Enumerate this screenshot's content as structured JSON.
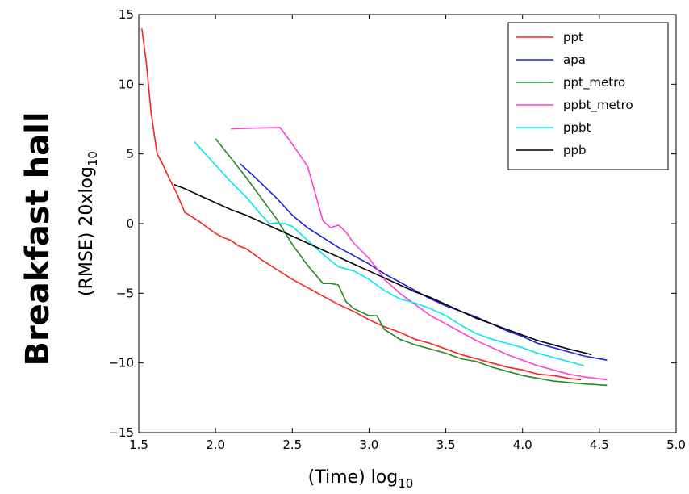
{
  "chart_data": {
    "type": "line",
    "title": "Breakfast hall",
    "xlabel": "(Time) log",
    "xlabel_sub": "10",
    "ylabel": "(RMSE) 20xlog",
    "ylabel_sub": "10",
    "xlim": [
      1.5,
      5.0
    ],
    "ylim": [
      -15,
      15
    ],
    "xticks": [
      1.5,
      2.0,
      2.5,
      3.0,
      3.5,
      4.0,
      4.5,
      5.0
    ],
    "xtick_labels": [
      "1.5",
      "2.0",
      "2.5",
      "3.0",
      "3.5",
      "4.0",
      "4.5",
      "5.0"
    ],
    "yticks": [
      -15,
      -10,
      -5,
      0,
      5,
      10,
      15
    ],
    "ytick_labels": [
      "−15",
      "−10",
      "−5",
      "0",
      "5",
      "10",
      "15"
    ],
    "grid": false,
    "legend_position": "top-right",
    "series": [
      {
        "name": "ppt",
        "color": "#ff2020",
        "x": [
          1.52,
          1.55,
          1.58,
          1.62,
          1.65,
          1.7,
          1.75,
          1.8,
          1.83,
          1.9,
          2.0,
          2.05,
          2.1,
          2.15,
          2.2,
          2.25,
          2.3,
          2.4,
          2.5,
          2.6,
          2.7,
          2.8,
          2.9,
          3.0,
          3.1,
          3.2,
          3.3,
          3.4,
          3.5,
          3.6,
          3.7,
          3.8,
          3.9,
          4.0,
          4.1,
          4.2,
          4.3,
          4.38
        ],
        "y": [
          14.0,
          11.5,
          8.0,
          5.0,
          4.4,
          3.2,
          2.1,
          0.8,
          0.6,
          0.1,
          -0.7,
          -1.0,
          -1.2,
          -1.6,
          -1.8,
          -2.2,
          -2.6,
          -3.3,
          -4.0,
          -4.6,
          -5.2,
          -5.8,
          -6.3,
          -6.9,
          -7.4,
          -7.8,
          -8.3,
          -8.6,
          -9.0,
          -9.4,
          -9.7,
          -10.0,
          -10.3,
          -10.5,
          -10.8,
          -10.9,
          -11.1,
          -11.2
        ]
      },
      {
        "name": "apa",
        "color": "#2020e0",
        "x": [
          2.16,
          2.25,
          2.4,
          2.5,
          2.6,
          2.7,
          2.8,
          2.9,
          3.0,
          3.1,
          3.2,
          3.3,
          3.4,
          3.5,
          3.6,
          3.7,
          3.8,
          3.9,
          4.0,
          4.1,
          4.2,
          4.3,
          4.4,
          4.55
        ],
        "y": [
          4.3,
          3.4,
          1.8,
          0.6,
          -0.3,
          -1.0,
          -1.7,
          -2.3,
          -2.9,
          -3.6,
          -4.2,
          -4.8,
          -5.4,
          -5.9,
          -6.3,
          -6.7,
          -7.2,
          -7.7,
          -8.1,
          -8.6,
          -8.9,
          -9.2,
          -9.5,
          -9.8
        ]
      },
      {
        "name": "ppt_metro",
        "color": "#228b22",
        "x": [
          2.0,
          2.1,
          2.2,
          2.3,
          2.4,
          2.5,
          2.6,
          2.7,
          2.75,
          2.8,
          2.85,
          2.9,
          3.0,
          3.05,
          3.1,
          3.2,
          3.3,
          3.4,
          3.5,
          3.6,
          3.7,
          3.8,
          3.9,
          4.0,
          4.1,
          4.2,
          4.3,
          4.4,
          4.55
        ],
        "y": [
          6.1,
          4.7,
          3.3,
          1.8,
          0.3,
          -1.5,
          -3.0,
          -4.3,
          -4.3,
          -4.4,
          -5.6,
          -6.1,
          -6.6,
          -6.6,
          -7.6,
          -8.3,
          -8.7,
          -9.0,
          -9.3,
          -9.7,
          -9.9,
          -10.3,
          -10.6,
          -10.9,
          -11.1,
          -11.3,
          -11.4,
          -11.5,
          -11.6
        ]
      },
      {
        "name": "ppbt_metro",
        "color": "#ff40d0",
        "x": [
          2.1,
          2.25,
          2.42,
          2.5,
          2.6,
          2.7,
          2.75,
          2.8,
          2.85,
          2.9,
          3.0,
          3.05,
          3.1,
          3.2,
          3.3,
          3.4,
          3.5,
          3.6,
          3.7,
          3.8,
          3.9,
          4.0,
          4.1,
          4.2,
          4.3,
          4.4,
          4.55
        ],
        "y": [
          6.8,
          6.85,
          6.9,
          5.7,
          4.1,
          0.2,
          -0.3,
          -0.1,
          -0.6,
          -1.4,
          -2.5,
          -3.2,
          -4.0,
          -5.0,
          -5.8,
          -6.6,
          -7.2,
          -7.8,
          -8.4,
          -8.9,
          -9.4,
          -9.8,
          -10.2,
          -10.5,
          -10.8,
          -11.0,
          -11.2
        ]
      },
      {
        "name": "ppbt",
        "color": "#00e8f0",
        "x": [
          1.86,
          2.0,
          2.1,
          2.2,
          2.3,
          2.35,
          2.4,
          2.45,
          2.5,
          2.6,
          2.7,
          2.8,
          2.9,
          3.0,
          3.1,
          3.2,
          3.3,
          3.4,
          3.5,
          3.6,
          3.7,
          3.8,
          3.9,
          4.0,
          4.1,
          4.2,
          4.3,
          4.4
        ],
        "y": [
          5.9,
          4.2,
          3.0,
          1.9,
          0.6,
          0.0,
          0.05,
          0.0,
          -0.2,
          -1.2,
          -2.2,
          -3.1,
          -3.4,
          -4.0,
          -4.8,
          -5.4,
          -5.7,
          -6.1,
          -6.6,
          -7.3,
          -7.9,
          -8.3,
          -8.6,
          -8.9,
          -9.3,
          -9.6,
          -9.9,
          -10.2
        ]
      },
      {
        "name": "ppb",
        "color": "#000000",
        "x": [
          1.73,
          1.8,
          1.9,
          2.0,
          2.1,
          2.2,
          2.3,
          2.4,
          2.5,
          2.6,
          2.7,
          2.8,
          2.9,
          3.0,
          3.1,
          3.2,
          3.3,
          3.4,
          3.5,
          3.6,
          3.7,
          3.8,
          3.9,
          4.0,
          4.1,
          4.2,
          4.3,
          4.45
        ],
        "y": [
          2.8,
          2.5,
          2.0,
          1.5,
          1.0,
          0.6,
          0.1,
          -0.4,
          -0.9,
          -1.4,
          -1.9,
          -2.4,
          -2.9,
          -3.4,
          -3.9,
          -4.4,
          -4.9,
          -5.3,
          -5.8,
          -6.3,
          -6.8,
          -7.2,
          -7.6,
          -8.0,
          -8.4,
          -8.7,
          -9.0,
          -9.4
        ]
      }
    ]
  }
}
